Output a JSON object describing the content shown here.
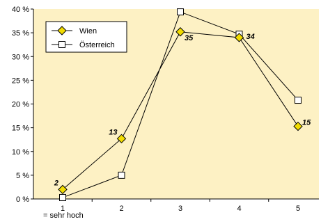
{
  "chart_data": {
    "type": "line",
    "categories": [
      "1",
      "2",
      "3",
      "4",
      "5"
    ],
    "x_sublabel": "= sehr hoch",
    "ylim": [
      0,
      40
    ],
    "ytick_values": [
      0,
      5,
      10,
      15,
      20,
      25,
      30,
      35,
      40
    ],
    "ytick_labels": [
      "0 %",
      "5 %",
      "10 %",
      "15 %",
      "20 %",
      "25 %",
      "30 %",
      "35 %",
      "40 %"
    ],
    "grid": false,
    "legend_position": "top-left",
    "plot_background": "#fdf1c4",
    "series": [
      {
        "name": "Wien",
        "marker": "diamond",
        "color": "#f2dc00",
        "values": [
          2,
          12.7,
          35.2,
          34,
          15.3
        ],
        "data_labels": [
          "2",
          "13",
          "35",
          "34",
          "15"
        ]
      },
      {
        "name": "Österreich",
        "marker": "square",
        "color": "#ffffff",
        "values": [
          0.3,
          5,
          39.4,
          34.7,
          20.8
        ]
      }
    ]
  }
}
